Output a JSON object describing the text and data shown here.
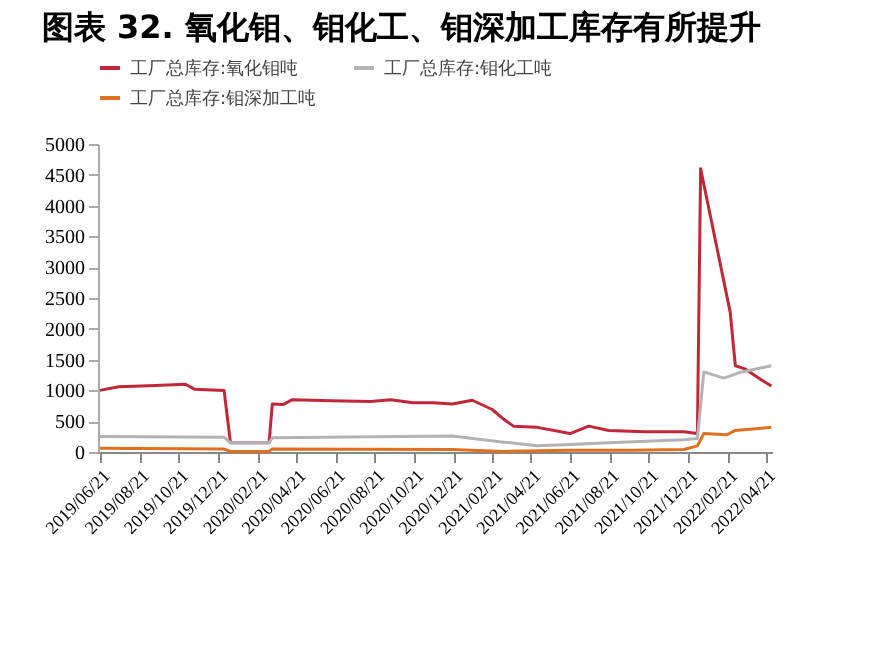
{
  "chart_data": {
    "type": "line",
    "title": "图表 32. 氧化钼、钼化工、钼深加工库存有所提升",
    "series": [
      {
        "name": "工厂总库存:氧化钼吨",
        "color": "#c0283a",
        "x": [
          "2019-06-21",
          "2019-07-20",
          "2019-09-15",
          "2019-11-01",
          "2019-11-15",
          "2019-12-31",
          "2020-01-10",
          "2020-03-10",
          "2020-03-15",
          "2020-04-01",
          "2020-04-15",
          "2020-06-15",
          "2020-08-15",
          "2020-09-15",
          "2020-10-20",
          "2020-11-20",
          "2020-12-20",
          "2021-01-20",
          "2021-02-20",
          "2021-03-10",
          "2021-03-25",
          "2021-05-01",
          "2021-06-21",
          "2021-07-20",
          "2021-08-20",
          "2021-10-15",
          "2021-12-15",
          "2022-01-05",
          "2022-01-10",
          "2022-02-25",
          "2022-03-05",
          "2022-03-20",
          "2022-04-10",
          "2022-04-30"
        ],
        "values": [
          1000,
          1060,
          1080,
          1100,
          1020,
          1000,
          150,
          150,
          780,
          770,
          850,
          830,
          820,
          850,
          800,
          800,
          780,
          840,
          690,
          530,
          420,
          400,
          300,
          420,
          350,
          330,
          330,
          300,
          4600,
          2270,
          1400,
          1350,
          1200,
          1070
        ]
      },
      {
        "name": "工厂总库存:钼化工吨",
        "color": "#b3b3b3",
        "x": [
          "2019-06-21",
          "2019-12-31",
          "2020-01-10",
          "2020-03-10",
          "2020-03-15",
          "2020-12-20",
          "2021-03-10",
          "2021-05-01",
          "2021-06-21",
          "2021-08-20",
          "2021-12-15",
          "2022-01-05",
          "2022-01-15",
          "2022-02-15",
          "2022-03-15",
          "2022-04-30"
        ],
        "values": [
          250,
          240,
          150,
          150,
          230,
          260,
          160,
          100,
          120,
          150,
          200,
          220,
          1300,
          1200,
          1300,
          1400
        ]
      },
      {
        "name": "工厂总库存:钼深加工吨",
        "color": "#e07020",
        "x": [
          "2019-06-21",
          "2019-12-30",
          "2020-01-10",
          "2020-03-10",
          "2020-03-15",
          "2020-12-20",
          "2021-03-10",
          "2021-06-21",
          "2021-09-20",
          "2021-12-15",
          "2022-01-05",
          "2022-01-15",
          "2022-02-20",
          "2022-03-05",
          "2022-04-10",
          "2022-04-30"
        ],
        "values": [
          60,
          50,
          10,
          10,
          50,
          40,
          10,
          30,
          30,
          40,
          100,
          300,
          280,
          350,
          380,
          400
        ]
      }
    ],
    "ylim": [
      0,
      5000
    ],
    "yticks": [
      0,
      500,
      1000,
      1500,
      2000,
      2500,
      3000,
      3500,
      4000,
      4500,
      5000
    ],
    "xlim": [
      "2019-06-18",
      "2022-05-01"
    ],
    "xticks": [
      {
        "value": "2019-06-21",
        "label": "2019/06/21"
      },
      {
        "value": "2019-08-21",
        "label": "2019/08/21"
      },
      {
        "value": "2019-10-21",
        "label": "2019/10/21"
      },
      {
        "value": "2019-12-21",
        "label": "2019/12/21"
      },
      {
        "value": "2020-02-21",
        "label": "2020/02/21"
      },
      {
        "value": "2020-04-21",
        "label": "2020/04/21"
      },
      {
        "value": "2020-06-21",
        "label": "2020/06/21"
      },
      {
        "value": "2020-08-21",
        "label": "2020/08/21"
      },
      {
        "value": "2020-10-21",
        "label": "2020/10/21"
      },
      {
        "value": "2020-12-21",
        "label": "2020/12/21"
      },
      {
        "value": "2021-02-21",
        "label": "2021/02/21"
      },
      {
        "value": "2021-04-21",
        "label": "2021/04/21"
      },
      {
        "value": "2021-06-21",
        "label": "2021/06/21"
      },
      {
        "value": "2021-08-21",
        "label": "2021/08/21"
      },
      {
        "value": "2021-10-21",
        "label": "2021/10/21"
      },
      {
        "value": "2021-12-21",
        "label": "2021/12/21"
      },
      {
        "value": "2022-02-21",
        "label": "2022/02/21"
      },
      {
        "value": "2022-04-21",
        "label": "2022/04/21"
      }
    ],
    "grid": false,
    "legend": "top",
    "line_style": "solid",
    "marker": "none"
  }
}
